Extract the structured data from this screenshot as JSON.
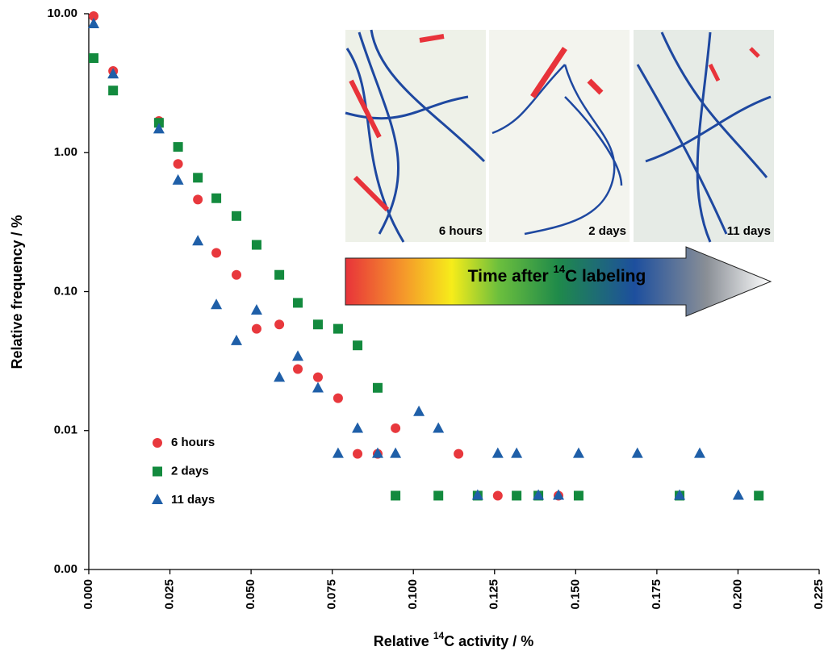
{
  "chart_data": {
    "type": "scatter",
    "ylabel": "Relative frequency / %",
    "xlabel": [
      "Relative ",
      "14",
      "C activity / %"
    ],
    "annotation": [
      "Time after ",
      "14",
      "C labeling"
    ],
    "inset_labels": [
      "6 hours",
      "2 days",
      "11 days"
    ],
    "log_y": true,
    "grid": false,
    "legend": "lower left",
    "xlim": [
      0,
      0.225
    ],
    "xticks": [
      {
        "value": 0,
        "label": "0.000"
      },
      {
        "value": 0.025,
        "label": "0.025"
      },
      {
        "value": 0.05,
        "label": "0.050"
      },
      {
        "value": 0.075,
        "label": "0.075"
      },
      {
        "value": 0.1,
        "label": "0.100"
      },
      {
        "value": 0.125,
        "label": "0.125"
      },
      {
        "value": 0.15,
        "label": "0.150"
      },
      {
        "value": 0.175,
        "label": "0.175"
      },
      {
        "value": 0.2,
        "label": "0.200"
      },
      {
        "value": 0.225,
        "label": "0.225"
      }
    ],
    "ylim": [
      0.001,
      10
    ],
    "yticks": [
      {
        "value": 0.001,
        "label": "0.00"
      },
      {
        "value": 0.01,
        "label": "0.01"
      },
      {
        "value": 0.1,
        "label": "0.10"
      },
      {
        "value": 1,
        "label": "1.00"
      },
      {
        "value": 10,
        "label": "10.00"
      }
    ],
    "series": [
      {
        "name": "6 hours",
        "color": "#e8383d",
        "marker": "circle",
        "x": [
          0.0015,
          0.0075,
          0.0216,
          0.0275,
          0.0336,
          0.0393,
          0.0455,
          0.0517,
          0.0587,
          0.0644,
          0.0706,
          0.0768,
          0.0828,
          0.089,
          0.0945,
          0.1139,
          0.126,
          0.1447
        ],
        "values": [
          9.6,
          3.87,
          1.69,
          0.83,
          0.46,
          0.19,
          0.132,
          0.054,
          0.058,
          0.0277,
          0.0242,
          0.0171,
          0.0068,
          0.0068,
          0.0104,
          0.0068,
          0.0034,
          0.0034
        ]
      },
      {
        "name": "2 days",
        "color": "#138a3e",
        "marker": "square",
        "x": [
          0.0015,
          0.0075,
          0.0216,
          0.0275,
          0.0336,
          0.0393,
          0.0455,
          0.0517,
          0.0587,
          0.0644,
          0.0706,
          0.0768,
          0.0828,
          0.089,
          0.0945,
          0.1077,
          0.1198,
          0.1318,
          0.1385,
          0.1509,
          0.182,
          0.2064
        ],
        "values": [
          4.79,
          2.8,
          1.64,
          1.1,
          0.66,
          0.47,
          0.35,
          0.217,
          0.132,
          0.083,
          0.058,
          0.054,
          0.041,
          0.0203,
          0.0034,
          0.0034,
          0.0034,
          0.0034,
          0.0034,
          0.0034,
          0.0034,
          0.0034
        ]
      },
      {
        "name": "11 days",
        "color": "#1f5fa8",
        "marker": "triangle",
        "x": [
          0.0015,
          0.0075,
          0.0216,
          0.0275,
          0.0336,
          0.0393,
          0.0455,
          0.0517,
          0.0587,
          0.0644,
          0.0706,
          0.0768,
          0.0828,
          0.089,
          0.0945,
          0.1017,
          0.1077,
          0.1198,
          0.126,
          0.1318,
          0.1385,
          0.1447,
          0.1509,
          0.169,
          0.182,
          0.1882,
          0.2001
        ],
        "values": [
          8.4,
          3.66,
          1.47,
          0.63,
          0.23,
          0.08,
          0.044,
          0.073,
          0.024,
          0.034,
          0.0201,
          0.0068,
          0.0103,
          0.0068,
          0.0068,
          0.0136,
          0.0103,
          0.0034,
          0.0068,
          0.0068,
          0.0034,
          0.0034,
          0.0068,
          0.0068,
          0.0034,
          0.0068,
          0.0034
        ]
      }
    ]
  }
}
